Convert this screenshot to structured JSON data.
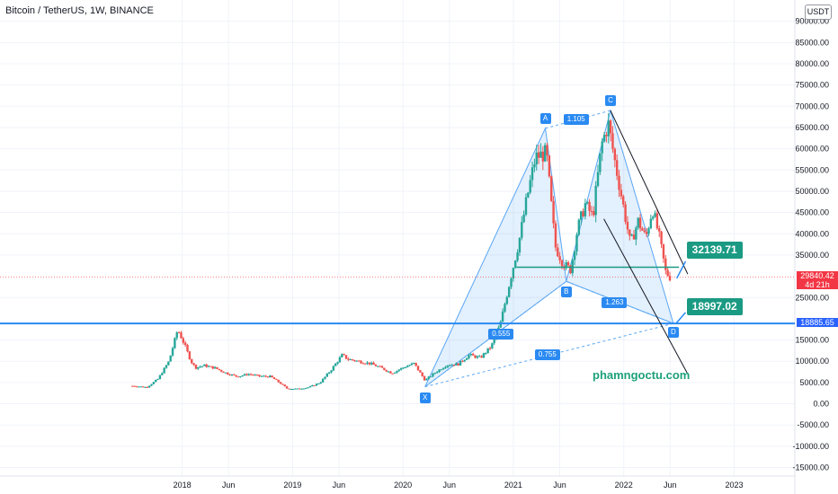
{
  "header": {
    "title": "Bitcoin / TetherUS, 1W, BINANCE",
    "currency": "USDT"
  },
  "watermark": "phamngoctu.com",
  "chart_data": {
    "type": "candlestick",
    "ylim": [
      -17000,
      95000
    ],
    "y_ticks": [
      {
        "v": 90000,
        "label": "90000.00"
      },
      {
        "v": 85000,
        "label": "85000.00"
      },
      {
        "v": 80000,
        "label": "80000.00"
      },
      {
        "v": 75000,
        "label": "75000.00"
      },
      {
        "v": 70000,
        "label": "70000.00"
      },
      {
        "v": 65000,
        "label": "65000.00"
      },
      {
        "v": 60000,
        "label": "60000.00"
      },
      {
        "v": 55000,
        "label": "55000.00"
      },
      {
        "v": 50000,
        "label": "50000.00"
      },
      {
        "v": 45000,
        "label": "45000.00"
      },
      {
        "v": 40000,
        "label": "40000.00"
      },
      {
        "v": 35000,
        "label": "35000.00"
      },
      {
        "v": 25000,
        "label": "25000.00"
      },
      {
        "v": 15000,
        "label": "15000.00"
      },
      {
        "v": 10000,
        "label": "10000.00"
      },
      {
        "v": 5000,
        "label": "5000.00"
      },
      {
        "v": 0,
        "label": "0.00"
      },
      {
        "v": -5000,
        "label": "-5000.00"
      },
      {
        "v": -10000,
        "label": "-10000.00"
      },
      {
        "v": -15000,
        "label": "-15000.00"
      }
    ],
    "x_ticks": [
      {
        "t": 2018.0,
        "label": "2018"
      },
      {
        "t": 2018.42,
        "label": "Jun"
      },
      {
        "t": 2019.0,
        "label": "2019"
      },
      {
        "t": 2019.42,
        "label": "Jun"
      },
      {
        "t": 2020.0,
        "label": "2020"
      },
      {
        "t": 2020.42,
        "label": "Jun"
      },
      {
        "t": 2021.0,
        "label": "2021"
      },
      {
        "t": 2021.42,
        "label": "Jun"
      },
      {
        "t": 2022.0,
        "label": "2022"
      },
      {
        "t": 2022.42,
        "label": "Jun"
      },
      {
        "t": 2023.0,
        "label": "2023"
      }
    ],
    "xlim": [
      2016.35,
      2023.55
    ],
    "price_keypoints": [
      [
        2017.55,
        4200
      ],
      [
        2017.68,
        3900
      ],
      [
        2017.78,
        5800
      ],
      [
        2017.88,
        10000
      ],
      [
        2017.96,
        17500
      ],
      [
        2018.02,
        14000
      ],
      [
        2018.08,
        10000
      ],
      [
        2018.12,
        8500
      ],
      [
        2018.2,
        9000
      ],
      [
        2018.3,
        8400
      ],
      [
        2018.4,
        7200
      ],
      [
        2018.5,
        6400
      ],
      [
        2018.6,
        7000
      ],
      [
        2018.7,
        6500
      ],
      [
        2018.8,
        6400
      ],
      [
        2018.88,
        5000
      ],
      [
        2018.95,
        3600
      ],
      [
        2019.05,
        3500
      ],
      [
        2019.15,
        3900
      ],
      [
        2019.25,
        5000
      ],
      [
        2019.35,
        8000
      ],
      [
        2019.45,
        11500
      ],
      [
        2019.5,
        10500
      ],
      [
        2019.6,
        10000
      ],
      [
        2019.7,
        9500
      ],
      [
        2019.8,
        8500
      ],
      [
        2019.9,
        7200
      ],
      [
        2020.0,
        8500
      ],
      [
        2020.1,
        9500
      ],
      [
        2020.2,
        5500
      ],
      [
        2020.3,
        7500
      ],
      [
        2020.4,
        9200
      ],
      [
        2020.5,
        9300
      ],
      [
        2020.6,
        11500
      ],
      [
        2020.7,
        10800
      ],
      [
        2020.8,
        13500
      ],
      [
        2020.88,
        18500
      ],
      [
        2020.97,
        29000
      ],
      [
        2021.05,
        38000
      ],
      [
        2021.12,
        48000
      ],
      [
        2021.2,
        58000
      ],
      [
        2021.3,
        59000
      ],
      [
        2021.38,
        37000
      ],
      [
        2021.45,
        33000
      ],
      [
        2021.52,
        31500
      ],
      [
        2021.58,
        41000
      ],
      [
        2021.65,
        47000
      ],
      [
        2021.72,
        44000
      ],
      [
        2021.8,
        61000
      ],
      [
        2021.86,
        66000
      ],
      [
        2021.92,
        57000
      ],
      [
        2022.0,
        46000
      ],
      [
        2022.06,
        37500
      ],
      [
        2022.13,
        43000
      ],
      [
        2022.2,
        39000
      ],
      [
        2022.26,
        46000
      ],
      [
        2022.32,
        39500
      ],
      [
        2022.38,
        31000
      ],
      [
        2022.42,
        29800
      ]
    ],
    "last_price": "29840.42",
    "countdown": "4d 21h",
    "support_price": 18885.65,
    "support_label": "18885.65",
    "harmonic_points": {
      "X": {
        "t": 2020.2,
        "v": 4000
      },
      "A": {
        "t": 2021.29,
        "v": 64800
      },
      "B": {
        "t": 2021.48,
        "v": 28800
      },
      "C": {
        "t": 2021.88,
        "v": 69000
      },
      "D": {
        "t": 2022.45,
        "v": 18900
      }
    },
    "ratios": {
      "XAB": "0.555",
      "ABC": "1.105",
      "BCD": "1.263",
      "XAD": "0.755"
    },
    "callouts": [
      {
        "label": "32139.71",
        "v": 32139.71
      },
      {
        "label": "18997.02",
        "v": 18997.02
      }
    ]
  }
}
